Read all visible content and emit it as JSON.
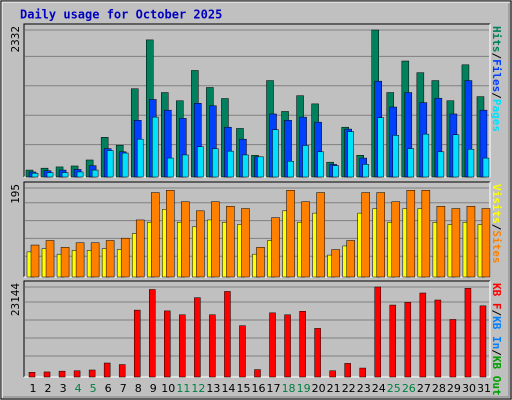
{
  "title": "Daily usage for October 2025",
  "separator": "/",
  "weekend": [
    4,
    5,
    11,
    12,
    18,
    19,
    25,
    26
  ],
  "weekend_color": "#008040",
  "chart_data": [
    {
      "type": "bar",
      "ylim": [
        0,
        2332
      ],
      "yticks": [
        2332
      ],
      "series": [
        {
          "name": "Hits",
          "color": "#00805c",
          "values": [
            110,
            140,
            160,
            175,
            270,
            630,
            505,
            1400,
            2175,
            1340,
            1210,
            1690,
            1420,
            1245,
            770,
            345,
            1530,
            1040,
            1290,
            1160,
            235,
            790,
            345,
            2332,
            1340,
            1840,
            1655,
            1530,
            1210,
            1780,
            1275
          ]
        },
        {
          "name": "Files",
          "color": "#0040ff",
          "values": [
            80,
            100,
            110,
            120,
            180,
            450,
            400,
            900,
            1230,
            1060,
            930,
            1170,
            1130,
            790,
            600,
            320,
            1000,
            900,
            950,
            870,
            200,
            760,
            300,
            1520,
            1110,
            1340,
            1180,
            1250,
            1000,
            1530,
            1060
          ]
        },
        {
          "name": "Pages",
          "color": "#00e0ff",
          "values": [
            60,
            70,
            70,
            80,
            110,
            420,
            380,
            600,
            950,
            300,
            350,
            480,
            450,
            410,
            350,
            320,
            750,
            250,
            500,
            400,
            180,
            720,
            200,
            940,
            660,
            450,
            680,
            400,
            670,
            440,
            300
          ]
        }
      ]
    },
    {
      "type": "bar",
      "ylim": [
        0,
        195
      ],
      "yticks": [
        195
      ],
      "series": [
        {
          "name": "Visits",
          "color": "#ffff00",
          "values": [
            55,
            62,
            50,
            58,
            58,
            62,
            60,
            95,
            120,
            148,
            120,
            110,
            125,
            120,
            115,
            50,
            80,
            145,
            120,
            140,
            48,
            68,
            140,
            150,
            120,
            150,
            150,
            120,
            115,
            120,
            115
          ]
        },
        {
          "name": "Sites",
          "color": "#ff8000",
          "values": [
            70,
            80,
            65,
            75,
            75,
            80,
            85,
            125,
            185,
            190,
            165,
            145,
            165,
            155,
            150,
            65,
            130,
            190,
            165,
            185,
            60,
            80,
            185,
            185,
            165,
            190,
            190,
            155,
            150,
            155,
            150
          ]
        }
      ]
    },
    {
      "type": "bar",
      "ylim": [
        0,
        23144
      ],
      "yticks": [
        23144
      ],
      "categories": [
        "1",
        "2",
        "3",
        "4",
        "5",
        "6",
        "7",
        "8",
        "9",
        "10",
        "11",
        "12",
        "13",
        "14",
        "15",
        "16",
        "17",
        "18",
        "19",
        "20",
        "21",
        "22",
        "23",
        "24",
        "25",
        "26",
        "27",
        "28",
        "29",
        "30",
        "31"
      ],
      "series": [
        {
          "name": "KB F",
          "color": "#ff0000",
          "values": [
            1200,
            1300,
            1500,
            1600,
            1800,
            3600,
            3200,
            17200,
            22500,
            17000,
            16000,
            20400,
            16000,
            22000,
            13200,
            1900,
            16500,
            16000,
            16900,
            12500,
            1600,
            3500,
            2300,
            23144,
            18500,
            19200,
            21600,
            19800,
            14800,
            22800,
            18300
          ]
        }
      ],
      "legend_extra": [
        {
          "name": "KB In",
          "color": "#0080ff"
        },
        {
          "name": "KB Out",
          "color": "#00a000"
        }
      ]
    }
  ]
}
